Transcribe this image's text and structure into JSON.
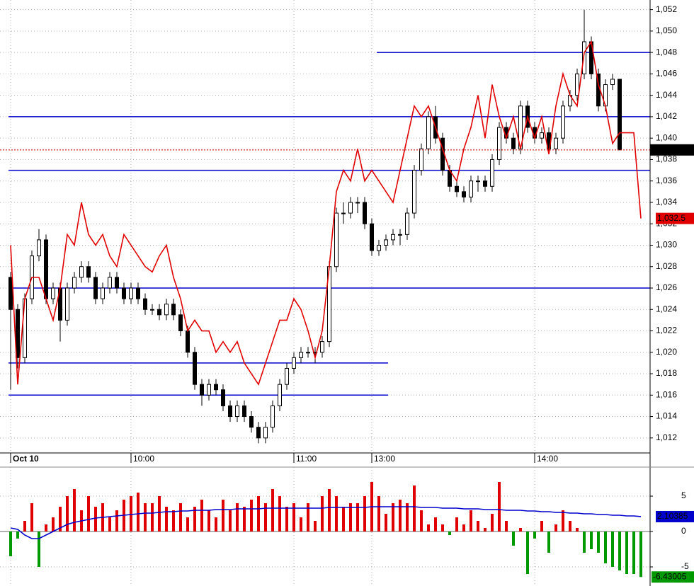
{
  "chart_data": [
    {
      "type": "candlestick",
      "categories": [
        "Oct 10",
        null,
        null,
        null,
        null,
        null,
        null,
        null,
        null,
        null,
        null,
        null,
        null,
        null,
        null,
        null,
        null,
        "10:00",
        null,
        null,
        null,
        null,
        null,
        null,
        null,
        null,
        null,
        null,
        null,
        null,
        null,
        null,
        null,
        null,
        null,
        null,
        null,
        null,
        null,
        null,
        "11:00",
        null,
        null,
        null,
        null,
        null,
        null,
        null,
        null,
        null,
        null,
        "13:00",
        null,
        null,
        null,
        null,
        null,
        null,
        null,
        null,
        null,
        null,
        null,
        null,
        null,
        null,
        null,
        null,
        null,
        null,
        null,
        null,
        null,
        null,
        "14:00",
        null,
        null,
        null,
        null,
        null,
        null,
        null,
        null,
        null,
        null,
        null,
        null,
        null,
        null,
        null
      ],
      "candles": {
        "up_color": "#ffffff",
        "down_color": "#000000",
        "open": [
          1027,
          1024,
          1019.5,
          1025,
          1029,
          1030.5,
          1025,
          1026,
          1023,
          1026,
          1027,
          1028,
          1027,
          1025,
          1026,
          1027,
          1026,
          1025,
          1026,
          1025,
          1024,
          1024,
          1023.5,
          1024.5,
          1023.5,
          1022,
          1020,
          1017,
          1016,
          1017,
          1016.5,
          1015,
          1014,
          1015,
          1014,
          1013,
          1012,
          1013,
          1015,
          1017,
          1018.5,
          1019.5,
          1020,
          1020,
          1020,
          1021,
          1028,
          1033,
          1033,
          1034,
          1034,
          1032,
          1029.5,
          1030,
          1030.5,
          1031,
          1031,
          1033,
          1037,
          1039,
          1042,
          1040,
          1037,
          1035.5,
          1035,
          1034.5,
          1036,
          1036,
          1035.5,
          1038,
          1041,
          1040,
          1039,
          1043,
          1041,
          1040,
          1040.5,
          1039,
          1040,
          1043,
          1044,
          1046,
          1049,
          1046,
          1043,
          1045,
          1045.5,
          null,
          null,
          null
        ],
        "high": [
          1027.5,
          1024.5,
          1025.5,
          1029.5,
          1031.5,
          1031,
          1026.5,
          1026.5,
          1026.5,
          1027.5,
          1028.5,
          1028.5,
          1027.5,
          1026.5,
          1027.5,
          1027.5,
          1026.5,
          1026.5,
          1026.5,
          1025.5,
          1024.5,
          1024.5,
          1025,
          1025,
          1024,
          1022.5,
          1020.5,
          1017.5,
          1017.5,
          1017.5,
          1017,
          1015.5,
          1015.5,
          1015.5,
          1014.5,
          1013.5,
          1013.5,
          1015.5,
          1017.5,
          1019,
          1020,
          1020.5,
          1020.5,
          1020.5,
          1021.5,
          1028.5,
          1033.5,
          1034,
          1034.5,
          1034.5,
          1034.5,
          1032.5,
          1030.5,
          1031,
          1031.5,
          1031.5,
          1033.5,
          1037.5,
          1039.5,
          1042.5,
          1043,
          1040.5,
          1037.5,
          1036,
          1035.5,
          1036.5,
          1036.5,
          1036.5,
          1038.5,
          1041.5,
          1041.5,
          1040.5,
          1043.5,
          1043.5,
          1041.5,
          1041,
          1041,
          1040.5,
          1043.5,
          1044.5,
          1046.5,
          1052,
          1049.5,
          1046.5,
          1045.5,
          1046,
          1045.5,
          null,
          null,
          null
        ],
        "low": [
          1016.5,
          1018.5,
          1019,
          1024.5,
          1028.5,
          1024.5,
          1024.5,
          1021,
          1022.5,
          1025.5,
          1026.5,
          1026.5,
          1024.5,
          1024.5,
          1025.5,
          1025.5,
          1024.5,
          1024.5,
          1024.5,
          1023.5,
          1023.5,
          1023,
          1023,
          1023,
          1021.5,
          1019.5,
          1016.5,
          1015,
          1015.5,
          1016,
          1014.5,
          1013.5,
          1013.5,
          1013.5,
          1012.5,
          1011.5,
          1011.5,
          1012.5,
          1014.5,
          1016.5,
          1018,
          1019,
          1019.5,
          1019,
          1019.5,
          1020.5,
          1027.5,
          1032,
          1032.5,
          1033,
          1031.5,
          1029,
          1029,
          1029.5,
          1030,
          1030,
          1030.5,
          1032.5,
          1036.5,
          1038.5,
          1039.5,
          1036.5,
          1035,
          1034.5,
          1034,
          1034,
          1035,
          1035,
          1035,
          1037.5,
          1039.5,
          1038.5,
          1038.5,
          1040.5,
          1039.5,
          1039.5,
          1038.5,
          1038.5,
          1039.5,
          1042.5,
          1043.5,
          1045.5,
          1045.5,
          1042.5,
          1042.5,
          1044.5,
          1038.9,
          null,
          null,
          null
        ],
        "close": [
          1024,
          1019.5,
          1025,
          1029,
          1030.5,
          1025,
          1026,
          1023,
          1026,
          1027,
          1028,
          1027,
          1025,
          1026,
          1027,
          1026,
          1025,
          1026,
          1025,
          1024,
          1024,
          1023.5,
          1024.5,
          1023.5,
          1022,
          1020,
          1017,
          1016,
          1017,
          1016.5,
          1015,
          1014,
          1015,
          1014,
          1013,
          1012,
          1013,
          1015,
          1017,
          1018.5,
          1019.5,
          1020,
          1020,
          1020,
          1021,
          1028,
          1033,
          1033,
          1034,
          1034,
          1032,
          1029.5,
          1030,
          1030.5,
          1031,
          1031,
          1033,
          1037,
          1039,
          1042,
          1040,
          1037,
          1035.5,
          1035,
          1034.5,
          1036,
          1036,
          1035.5,
          1038,
          1041,
          1040,
          1039,
          1043,
          1041,
          1040,
          1040.5,
          1039,
          1040,
          1043,
          1044,
          1046,
          1049,
          1046,
          1043,
          1045,
          1045.5,
          1038.9,
          null,
          null,
          null
        ],
        "last_label": "1,038.9",
        "last_color": "#000000"
      },
      "series": [
        {
          "color": "#e00000",
          "last_label": "1,032.5",
          "values": [
            1030,
            1017,
            1025,
            1027,
            1027,
            1025,
            1023,
            1026,
            1031,
            1030,
            1034,
            1031,
            1030,
            1031,
            1029,
            1028,
            1031,
            1030,
            1029,
            1028,
            1027.5,
            1029,
            1030,
            1027,
            1025,
            1022,
            1023,
            1022,
            1022,
            1020,
            1021,
            1020,
            1021,
            1019,
            1018,
            1017,
            1019,
            1021,
            1023,
            1023,
            1025,
            1024,
            1022,
            1019.5,
            1022,
            1028,
            1035,
            1037,
            1036,
            1039,
            1036,
            1037,
            1036,
            1035,
            1034,
            1037,
            1040,
            1043,
            1042,
            1043,
            1041,
            1039,
            1037,
            1036,
            1039,
            1041,
            1044,
            1040,
            1045,
            1042,
            1040,
            1042,
            1039,
            1042,
            1040,
            1042,
            1038.5,
            1043,
            1046,
            1044,
            1043,
            1048,
            1049,
            1045,
            1043,
            1039.5,
            1040.5,
            1040.5,
            1040.5,
            1032.5
          ]
        }
      ],
      "levels": [
        {
          "value": 1048,
          "from": 52,
          "to": 89
        },
        {
          "value": 1042,
          "from": 0,
          "to": 89
        },
        {
          "value": 1037,
          "from": 0,
          "to": 89
        },
        {
          "value": 1026,
          "from": 0,
          "to": 89
        },
        {
          "value": 1019,
          "from": 0,
          "to": 52
        },
        {
          "value": 1016,
          "from": 0,
          "to": 52
        }
      ],
      "level_color": "#0000cc",
      "ylim": [
        1010.6,
        1052.9
      ],
      "yticks": [
        {
          "value": 1012,
          "label": "1,012"
        },
        {
          "value": 1014,
          "label": "1,014"
        },
        {
          "value": 1016,
          "label": "1,016"
        },
        {
          "value": 1018,
          "label": "1,018"
        },
        {
          "value": 1020,
          "label": "1,020"
        },
        {
          "value": 1022,
          "label": "1,022"
        },
        {
          "value": 1024,
          "label": "1,024"
        },
        {
          "value": 1026,
          "label": "1,026"
        },
        {
          "value": 1028,
          "label": "1,028"
        },
        {
          "value": 1030,
          "label": "1,030"
        },
        {
          "value": 1032,
          "label": "1,032"
        },
        {
          "value": 1034,
          "label": "1,034"
        },
        {
          "value": 1036,
          "label": "1,036"
        },
        {
          "value": 1038,
          "label": "1,038"
        },
        {
          "value": 1040,
          "label": "1,040"
        },
        {
          "value": 1042,
          "label": "1,042"
        },
        {
          "value": 1044,
          "label": "1,044"
        },
        {
          "value": 1046,
          "label": "1,046"
        },
        {
          "value": 1048,
          "label": "1,048"
        },
        {
          "value": 1050,
          "label": "1,050"
        },
        {
          "value": 1052,
          "label": "1,052"
        }
      ],
      "grid": true
    },
    {
      "type": "histogram-line",
      "series": [
        {
          "type": "bar",
          "pos_color": "#e00000",
          "neg_color": "#009900",
          "last_label": "-6.43005",
          "values": [
            -3.5,
            -1,
            1.5,
            4,
            -5,
            1,
            2,
            3.5,
            5,
            6,
            3,
            5,
            3.5,
            4,
            2,
            3,
            4.5,
            5,
            5.5,
            4,
            4,
            5,
            3.5,
            3,
            4,
            2,
            3.5,
            4.5,
            3,
            2,
            4.5,
            3,
            4,
            3.5,
            4.5,
            5,
            4,
            6,
            5,
            3.5,
            4,
            2,
            4,
            1.5,
            5,
            6,
            5,
            3.5,
            4,
            4,
            5,
            7,
            5,
            2.5,
            4,
            4.5,
            4,
            6.5,
            3,
            1,
            2,
            1,
            -0.5,
            2,
            1,
            3,
            1.5,
            0.5,
            2.5,
            7,
            1.5,
            -2,
            0.5,
            -6,
            -1,
            1.5,
            -3,
            1,
            3,
            1.5,
            0.5,
            -3,
            -2.5,
            -3,
            -4.5,
            -5,
            -5.5,
            -6,
            -6,
            -6.43005
          ]
        },
        {
          "type": "line",
          "color": "#0000cc",
          "last_label": "2.10385",
          "values": [
            0.5,
            0.3,
            -0.5,
            -1,
            -1,
            -0.5,
            0,
            0.5,
            1,
            1.3,
            1.5,
            1.7,
            1.9,
            2.0,
            2.1,
            2.2,
            2.3,
            2.4,
            2.5,
            2.6,
            2.6,
            2.7,
            2.8,
            2.8,
            2.9,
            2.9,
            3.0,
            3.0,
            3.0,
            3.1,
            3.1,
            3.1,
            3.2,
            3.2,
            3.2,
            3.2,
            3.3,
            3.3,
            3.3,
            3.3,
            3.3,
            3.3,
            3.3,
            3.3,
            3.3,
            3.4,
            3.4,
            3.4,
            3.4,
            3.4,
            3.4,
            3.5,
            3.5,
            3.5,
            3.5,
            3.5,
            3.5,
            3.5,
            3.4,
            3.4,
            3.4,
            3.3,
            3.3,
            3.3,
            3.2,
            3.2,
            3.2,
            3.1,
            3.1,
            3.1,
            3.0,
            3.0,
            3.0,
            2.9,
            2.9,
            2.8,
            2.8,
            2.7,
            2.7,
            2.6,
            2.6,
            2.5,
            2.5,
            2.4,
            2.4,
            2.3,
            2.3,
            2.2,
            2.2,
            2.10385
          ]
        }
      ],
      "ylim": [
        -7.7,
        9.1
      ],
      "yticks": [
        -5,
        0,
        5
      ],
      "grid": true
    }
  ]
}
